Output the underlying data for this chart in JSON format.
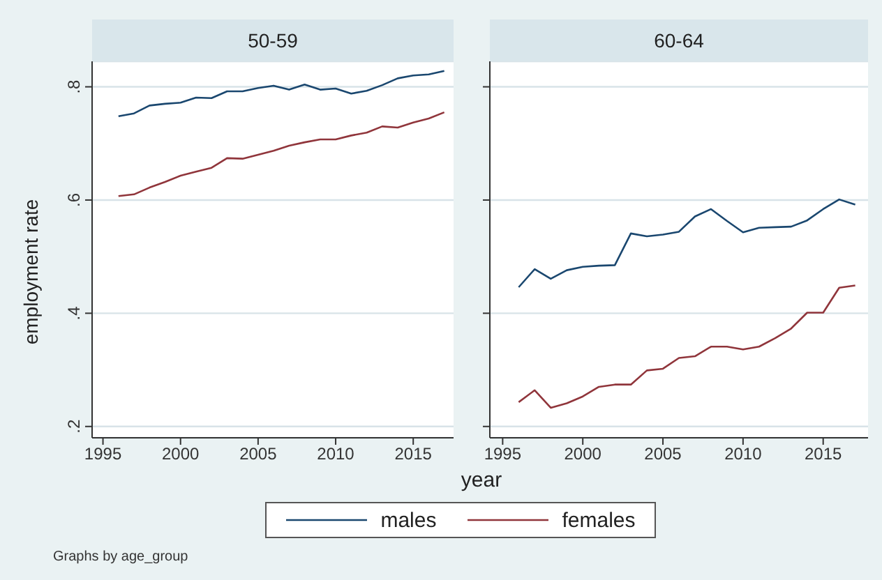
{
  "chart_data": [
    {
      "type": "line",
      "title": "50-59",
      "xlabel": "year",
      "ylabel": "employment rate",
      "annotations": [
        "Graphs by age_group"
      ],
      "x": [
        1996,
        1997,
        1998,
        1999,
        2000,
        2001,
        2002,
        2003,
        2004,
        2005,
        2006,
        2007,
        2008,
        2009,
        2010,
        2011,
        2012,
        2013,
        2014,
        2015,
        2016,
        2017
      ],
      "series": [
        {
          "name": "males",
          "color": "#1a476f",
          "values": [
            0.748,
            0.753,
            0.767,
            0.77,
            0.772,
            0.781,
            0.78,
            0.792,
            0.792,
            0.798,
            0.802,
            0.795,
            0.804,
            0.795,
            0.797,
            0.788,
            0.793,
            0.803,
            0.815,
            0.82,
            0.822,
            0.828
          ]
        },
        {
          "name": "females",
          "color": "#90353b",
          "values": [
            0.607,
            0.61,
            0.622,
            0.632,
            0.643,
            0.65,
            0.657,
            0.674,
            0.673,
            0.68,
            0.687,
            0.696,
            0.702,
            0.707,
            0.707,
            0.714,
            0.719,
            0.73,
            0.728,
            0.737,
            0.744,
            0.755
          ]
        }
      ],
      "xlim": [
        1994.3,
        2017.6
      ],
      "xticks": [
        1995,
        2000,
        2005,
        2010,
        2015
      ],
      "ylim": [
        0.18,
        0.845
      ],
      "yticks": [
        {
          "value": 0.2,
          "label": ".2"
        },
        {
          "value": 0.4,
          "label": ".4"
        },
        {
          "value": 0.6,
          "label": ".6"
        },
        {
          "value": 0.8,
          "label": ".8"
        }
      ],
      "grid": "y",
      "legend": "bottom",
      "marker": "none",
      "line_style": "solid"
    },
    {
      "type": "line",
      "title": "60-64",
      "x": [
        1996,
        1997,
        1998,
        1999,
        2000,
        2001,
        2002,
        2003,
        2004,
        2005,
        2006,
        2007,
        2008,
        2009,
        2010,
        2011,
        2012,
        2013,
        2014,
        2015,
        2016,
        2017
      ],
      "series": [
        {
          "color": "#1a476f",
          "values": [
            0.446,
            0.478,
            0.461,
            0.476,
            0.482,
            0.484,
            0.485,
            0.541,
            0.536,
            0.539,
            0.544,
            0.571,
            0.584,
            0.563,
            0.543,
            0.551,
            0.552,
            0.553,
            0.564,
            0.584,
            0.601,
            0.592
          ]
        },
        {
          "color": "#90353b",
          "values": [
            0.243,
            0.264,
            0.233,
            0.241,
            0.253,
            0.27,
            0.274,
            0.274,
            0.299,
            0.302,
            0.321,
            0.324,
            0.341,
            0.341,
            0.336,
            0.341,
            0.356,
            0.373,
            0.401,
            0.401,
            0.445,
            0.449
          ]
        }
      ],
      "xlim": [
        1994.2,
        2017.8
      ],
      "xticks": [
        1995,
        2000,
        2005,
        2010,
        2015
      ],
      "ylim": [
        0.18,
        0.845
      ],
      "yticks": [
        0.2,
        0.4,
        0.6,
        0.8
      ],
      "tick_labels": "x",
      "grid": "y",
      "marker": "none",
      "line_style": "solid"
    }
  ]
}
